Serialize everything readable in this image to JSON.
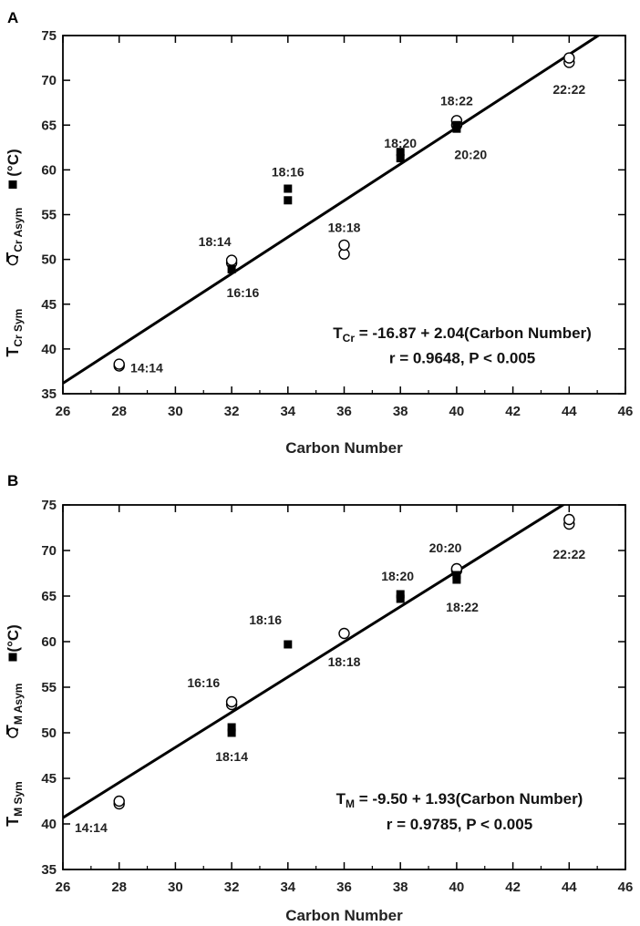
{
  "chart_data": [
    {
      "type": "scatter",
      "panel_label": "A",
      "xlabel": "Carbon Number",
      "ylabel": {
        "sym_main": "T",
        "sym_sub": "Cr Sym",
        "asym_main": "T",
        "asym_sub": "Cr Asym",
        "unit": "(°C)"
      },
      "xlim": [
        26,
        46
      ],
      "ylim": [
        35,
        75
      ],
      "xticks": [
        26,
        28,
        30,
        32,
        34,
        36,
        38,
        40,
        42,
        44,
        46
      ],
      "yticks": [
        35,
        40,
        45,
        50,
        55,
        60,
        65,
        70,
        75
      ],
      "grid": false,
      "series": [
        {
          "marker": "open-circle",
          "x": [
            28,
            28,
            32,
            32,
            36,
            36,
            40,
            40,
            44,
            44
          ],
          "y": [
            38.1,
            38.3,
            49.6,
            49.9,
            50.6,
            51.6,
            65.0,
            65.5,
            72.0,
            72.5
          ]
        },
        {
          "marker": "filled-square",
          "x": [
            32,
            34,
            34,
            38,
            38,
            40,
            40
          ],
          "y": [
            48.9,
            56.6,
            57.9,
            61.3,
            62.0,
            64.6,
            65.0
          ]
        }
      ],
      "fit": {
        "intercept": -16.87,
        "slope": 2.04
      },
      "point_labels": [
        {
          "text": "14:14",
          "x": 28.4,
          "y": 37.9,
          "anchor": "start"
        },
        {
          "text": "18:14",
          "x": 31.4,
          "y": 52.0,
          "anchor": "middle"
        },
        {
          "text": "16:16",
          "x": 32.4,
          "y": 46.3,
          "anchor": "middle"
        },
        {
          "text": "18:16",
          "x": 34.0,
          "y": 59.8,
          "anchor": "middle"
        },
        {
          "text": "18:18",
          "x": 36.0,
          "y": 53.6,
          "anchor": "middle"
        },
        {
          "text": "18:20",
          "x": 38.0,
          "y": 63.0,
          "anchor": "middle"
        },
        {
          "text": "18:22",
          "x": 40.0,
          "y": 67.7,
          "anchor": "middle"
        },
        {
          "text": "20:20",
          "x": 40.5,
          "y": 61.7,
          "anchor": "middle"
        },
        {
          "text": "22:22",
          "x": 44.0,
          "y": 69.0,
          "anchor": "middle"
        }
      ],
      "equation": {
        "main": "T",
        "sub": "Cr",
        "rest": " = -16.87 + 2.04(Carbon Number)",
        "stats": "r = 0.9648, P < 0.005",
        "x": 40.2,
        "y1": 41.2,
        "y2": 38.4
      }
    },
    {
      "type": "scatter",
      "panel_label": "B",
      "xlabel": "Carbon Number",
      "ylabel": {
        "sym_main": "T",
        "sym_sub": "M Sym",
        "asym_main": "T",
        "asym_sub": "M Asym",
        "unit": "(°C)"
      },
      "xlim": [
        26,
        46
      ],
      "ylim": [
        35,
        75
      ],
      "xticks": [
        26,
        28,
        30,
        32,
        34,
        36,
        38,
        40,
        42,
        44,
        46
      ],
      "yticks": [
        35,
        40,
        45,
        50,
        55,
        60,
        65,
        70,
        75
      ],
      "grid": false,
      "series": [
        {
          "marker": "open-circle",
          "x": [
            28,
            28,
            32,
            32,
            36,
            40,
            40,
            44,
            44
          ],
          "y": [
            42.2,
            42.5,
            53.1,
            53.4,
            60.9,
            67.8,
            68.0,
            72.9,
            73.4
          ]
        },
        {
          "marker": "filled-square",
          "x": [
            32,
            32,
            34,
            38,
            38,
            40,
            40
          ],
          "y": [
            50.0,
            50.6,
            59.7,
            64.7,
            65.2,
            66.8,
            67.3
          ]
        }
      ],
      "fit": {
        "intercept": -9.5,
        "slope": 1.93
      },
      "point_labels": [
        {
          "text": "14:14",
          "x": 27.0,
          "y": 39.6,
          "anchor": "middle"
        },
        {
          "text": "16:16",
          "x": 31.0,
          "y": 55.5,
          "anchor": "middle"
        },
        {
          "text": "18:14",
          "x": 32.0,
          "y": 47.4,
          "anchor": "middle"
        },
        {
          "text": "18:16",
          "x": 33.2,
          "y": 62.4,
          "anchor": "middle"
        },
        {
          "text": "18:18",
          "x": 36.0,
          "y": 57.8,
          "anchor": "middle"
        },
        {
          "text": "18:20",
          "x": 37.9,
          "y": 67.2,
          "anchor": "middle"
        },
        {
          "text": "20:20",
          "x": 39.6,
          "y": 70.3,
          "anchor": "middle"
        },
        {
          "text": "18:22",
          "x": 40.2,
          "y": 63.8,
          "anchor": "middle"
        },
        {
          "text": "22:22",
          "x": 44.0,
          "y": 69.6,
          "anchor": "middle"
        }
      ],
      "equation": {
        "main": "T",
        "sub": "M",
        "rest": " = -9.50 + 1.93(Carbon Number)",
        "stats": "r = 0.9785, P < 0.005",
        "x": 40.1,
        "y1": 42.2,
        "y2": 39.4
      }
    }
  ]
}
